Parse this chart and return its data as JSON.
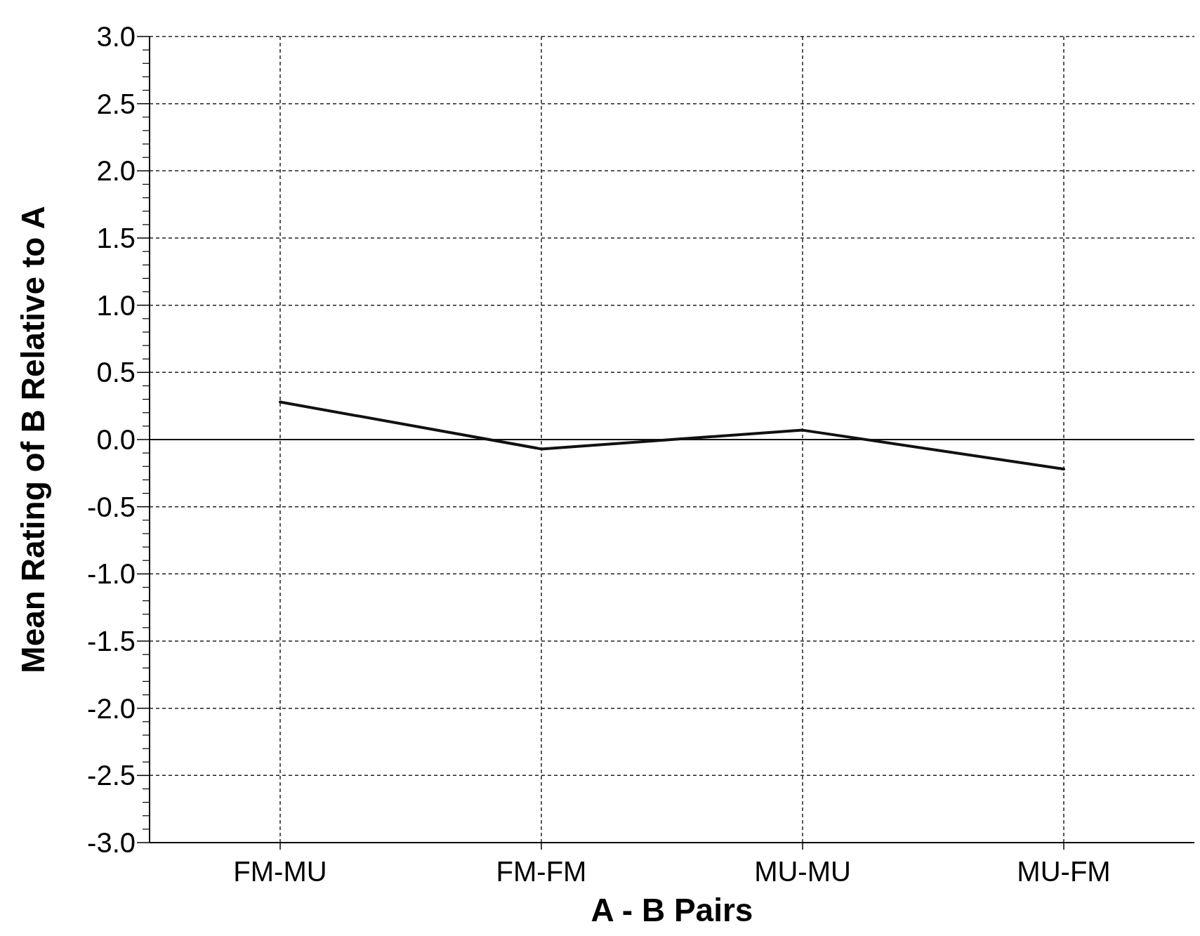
{
  "chart_data": {
    "type": "line",
    "xlabel": "A - B Pairs",
    "ylabel": "Mean Rating of B Relative to A",
    "categories": [
      "FM-MU",
      "FM-FM",
      "MU-MU",
      "MU-FM"
    ],
    "series": [
      {
        "color": "#111111",
        "values": [
          0.28,
          -0.07,
          0.07,
          -0.22
        ]
      }
    ],
    "ylim": [
      -3,
      3
    ],
    "yticks": [
      {
        "value": -3,
        "label": "-3.0"
      },
      {
        "value": -2.5,
        "label": "-2.5"
      },
      {
        "value": -2,
        "label": "-2.0"
      },
      {
        "value": -1.5,
        "label": "-1.5"
      },
      {
        "value": -1,
        "label": "-1.0"
      },
      {
        "value": -0.5,
        "label": "-0.5"
      },
      {
        "value": 0,
        "label": "0.0"
      },
      {
        "value": 0.5,
        "label": "0.5"
      },
      {
        "value": 1,
        "label": "1.0"
      },
      {
        "value": 1.5,
        "label": "1.5"
      },
      {
        "value": 2,
        "label": "2.0"
      },
      {
        "value": 2.5,
        "label": "2.5"
      },
      {
        "value": 3,
        "label": "3.0"
      }
    ],
    "ref_lines": [
      {
        "axis": "y",
        "value": 0,
        "color": "#111111",
        "line_style": "solid"
      }
    ],
    "grid": true,
    "marker": "none",
    "line_style": "solid"
  }
}
